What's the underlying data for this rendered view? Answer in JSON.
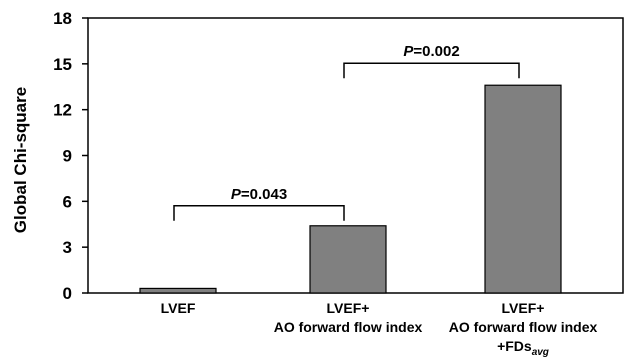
{
  "chart_data": {
    "type": "bar",
    "title": "",
    "xlabel": "",
    "ylabel": "Global Chi-square",
    "ylim": [
      0,
      18
    ],
    "yticks": [
      "0",
      "3",
      "6",
      "9",
      "12",
      "15",
      "18"
    ],
    "grid": false,
    "legend": "none",
    "bar_color": "#808080",
    "categories": [
      [
        "LVEF"
      ],
      [
        "LVEF+",
        "AO forward flow index"
      ],
      [
        "LVEF+",
        "AO forward flow index",
        "+FDs"
      ]
    ],
    "category_subscripts": [
      "",
      "",
      "avg"
    ],
    "values": [
      0.3,
      4.4,
      13.6
    ],
    "comparisons": [
      {
        "from": 0,
        "to": 1,
        "p_symbol": "P",
        "p_value": "=0.043"
      },
      {
        "from": 1,
        "to": 2,
        "p_symbol": "P",
        "p_value": "=0.002"
      }
    ]
  }
}
